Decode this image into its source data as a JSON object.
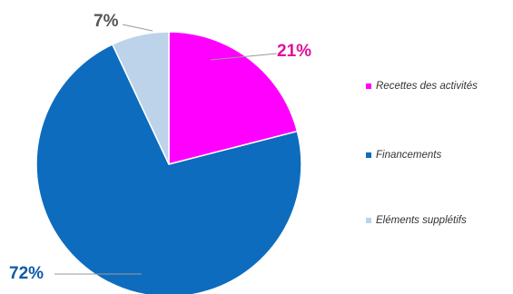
{
  "chart_data": {
    "type": "pie",
    "categories": [
      "Recettes des activités",
      "Financements",
      "Eléments supplétifs"
    ],
    "values": [
      21,
      72,
      7
    ],
    "value_labels": [
      "21%",
      "72%",
      "7%"
    ],
    "colors": [
      "#ff00ff",
      "#0d6cbd",
      "#bcd3ea"
    ],
    "label_colors": [
      "#e0109a",
      "#0d5aa7",
      "#555555"
    ],
    "start_angle_deg": 0,
    "direction": "clockwise",
    "legend": {
      "placement": "right",
      "entries": [
        "Recettes des activités",
        "Financements",
        "Eléments supplétifs"
      ]
    }
  }
}
